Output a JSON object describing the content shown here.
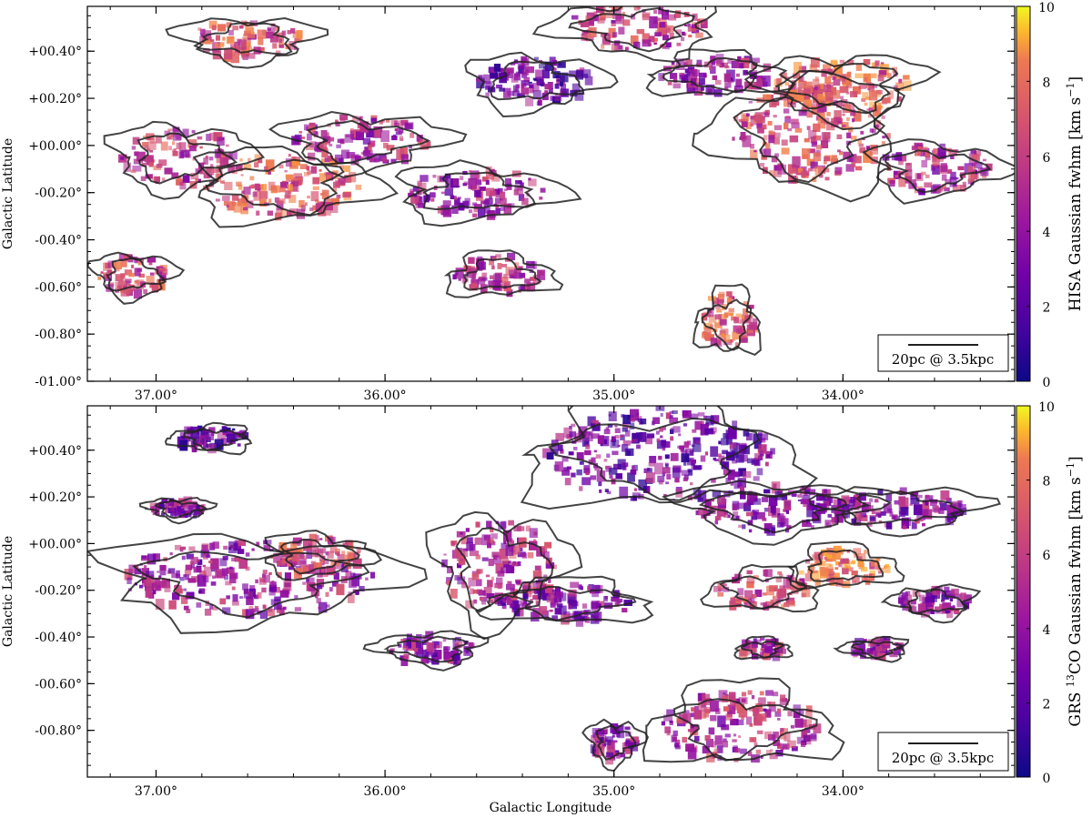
{
  "chart_data": [
    {
      "type": "heatmap",
      "panel": "top",
      "xlabel": "",
      "ylabel": "Galactic Latitude",
      "xlim": [
        37.3,
        33.25
      ],
      "ylim": [
        -1.0,
        0.59
      ],
      "x_ticks": [
        37.0,
        36.0,
        35.0,
        34.0
      ],
      "x_tick_labels": [
        "37.00°",
        "36.00°",
        "35.00°",
        "34.00°"
      ],
      "y_ticks": [
        0.4,
        0.2,
        0.0,
        -0.2,
        -0.4,
        -0.6,
        -0.8,
        -1.0
      ],
      "y_tick_labels": [
        "+00.40°",
        "+00.20°",
        "+00.00°",
        "-00.20°",
        "-00.40°",
        "-00.60°",
        "-00.80°",
        "-01.00°"
      ],
      "colorbar": {
        "label": "HISA Gaussian fwhm [km s⁻¹]",
        "label_parts": {
          "pre": "HISA Gaussian fwhm [km s",
          "sup": "−1",
          "post": "]"
        },
        "range": [
          0,
          10
        ],
        "ticks": [
          0,
          2,
          4,
          6,
          8,
          10
        ],
        "tick_labels": [
          "0",
          "2",
          "4",
          "6",
          "8",
          "10"
        ],
        "colormap": "plasma"
      },
      "scale_bar": "20pc @ 3.5kpc",
      "blobs": [
        {
          "l": 36.45,
          "b": -0.17,
          "rl": 0.35,
          "rb": 0.13,
          "v": 5.5
        },
        {
          "l": 36.9,
          "b": -0.05,
          "rl": 0.25,
          "rb": 0.12,
          "v": 4.5
        },
        {
          "l": 36.1,
          "b": 0.02,
          "rl": 0.3,
          "rb": 0.1,
          "v": 4.0
        },
        {
          "l": 35.35,
          "b": 0.27,
          "rl": 0.25,
          "rb": 0.1,
          "v": 2.0
        },
        {
          "l": 34.9,
          "b": 0.5,
          "rl": 0.3,
          "rb": 0.1,
          "v": 4.5
        },
        {
          "l": 34.55,
          "b": 0.3,
          "rl": 0.25,
          "rb": 0.08,
          "v": 3.5
        },
        {
          "l": 34.15,
          "b": 0.05,
          "rl": 0.35,
          "rb": 0.2,
          "v": 5.0
        },
        {
          "l": 34.0,
          "b": 0.25,
          "rl": 0.3,
          "rb": 0.12,
          "v": 6.0
        },
        {
          "l": 33.6,
          "b": -0.1,
          "rl": 0.25,
          "rb": 0.1,
          "v": 4.0
        },
        {
          "l": 35.6,
          "b": -0.2,
          "rl": 0.3,
          "rb": 0.1,
          "v": 3.5
        },
        {
          "l": 34.5,
          "b": -0.75,
          "rl": 0.12,
          "rb": 0.12,
          "v": 5.5
        },
        {
          "l": 35.5,
          "b": -0.55,
          "rl": 0.2,
          "rb": 0.08,
          "v": 4.0
        },
        {
          "l": 37.1,
          "b": -0.55,
          "rl": 0.15,
          "rb": 0.08,
          "v": 5.0
        },
        {
          "l": 36.6,
          "b": 0.45,
          "rl": 0.25,
          "rb": 0.08,
          "v": 5.5
        }
      ]
    },
    {
      "type": "heatmap",
      "panel": "bottom",
      "xlabel": "Galactic Longitude",
      "ylabel": "Galactic Latitude",
      "xlim": [
        37.3,
        33.25
      ],
      "ylim": [
        -1.0,
        0.59
      ],
      "x_ticks": [
        37.0,
        36.0,
        35.0,
        34.0
      ],
      "x_tick_labels": [
        "37.00°",
        "36.00°",
        "35.00°",
        "34.00°"
      ],
      "y_ticks": [
        0.4,
        0.2,
        0.0,
        -0.2,
        -0.4,
        -0.6,
        -0.8
      ],
      "y_tick_labels": [
        "+00.40°",
        "+00.20°",
        "+00.00°",
        "-00.20°",
        "-00.40°",
        "-00.60°",
        "-00.80°"
      ],
      "colorbar": {
        "label": "GRS ¹³CO Gaussian fwhm [km s⁻¹]",
        "label_parts": {
          "pre": "GRS ",
          "sup1": "13",
          "mid": "CO Gaussian fwhm [km s",
          "sup": "−1",
          "post": "]"
        },
        "range": [
          0,
          10
        ],
        "ticks": [
          0,
          2,
          4,
          6,
          8,
          10
        ],
        "tick_labels": [
          "0",
          "2",
          "4",
          "6",
          "8",
          "10"
        ],
        "colormap": "plasma"
      },
      "scale_bar": "20pc @ 3.5kpc",
      "blobs": [
        {
          "l": 36.6,
          "b": -0.15,
          "rl": 0.55,
          "rb": 0.16,
          "v": 3.5
        },
        {
          "l": 36.3,
          "b": -0.05,
          "rl": 0.2,
          "rb": 0.08,
          "v": 5.5
        },
        {
          "l": 35.5,
          "b": -0.1,
          "rl": 0.25,
          "rb": 0.2,
          "v": 4.0
        },
        {
          "l": 35.2,
          "b": -0.25,
          "rl": 0.3,
          "rb": 0.08,
          "v": 3.0
        },
        {
          "l": 34.8,
          "b": 0.38,
          "rl": 0.5,
          "rb": 0.2,
          "v": 2.5
        },
        {
          "l": 34.3,
          "b": 0.15,
          "rl": 0.35,
          "rb": 0.1,
          "v": 3.0
        },
        {
          "l": 33.75,
          "b": 0.15,
          "rl": 0.3,
          "rb": 0.08,
          "v": 3.0
        },
        {
          "l": 34.0,
          "b": -0.1,
          "rl": 0.2,
          "rb": 0.08,
          "v": 6.5
        },
        {
          "l": 34.35,
          "b": -0.2,
          "rl": 0.2,
          "rb": 0.08,
          "v": 5.0
        },
        {
          "l": 33.6,
          "b": -0.25,
          "rl": 0.15,
          "rb": 0.06,
          "v": 3.0
        },
        {
          "l": 34.45,
          "b": -0.78,
          "rl": 0.35,
          "rb": 0.15,
          "v": 4.0
        },
        {
          "l": 35.8,
          "b": -0.45,
          "rl": 0.2,
          "rb": 0.06,
          "v": 3.0
        },
        {
          "l": 36.75,
          "b": 0.45,
          "rl": 0.15,
          "rb": 0.05,
          "v": 2.0
        },
        {
          "l": 36.9,
          "b": 0.15,
          "rl": 0.12,
          "rb": 0.04,
          "v": 3.0
        },
        {
          "l": 35.0,
          "b": -0.85,
          "rl": 0.1,
          "rb": 0.08,
          "v": 3.0
        },
        {
          "l": 33.85,
          "b": -0.45,
          "rl": 0.12,
          "rb": 0.04,
          "v": 3.0
        },
        {
          "l": 34.35,
          "b": -0.45,
          "rl": 0.1,
          "rb": 0.04,
          "v": 4.0
        }
      ]
    }
  ]
}
